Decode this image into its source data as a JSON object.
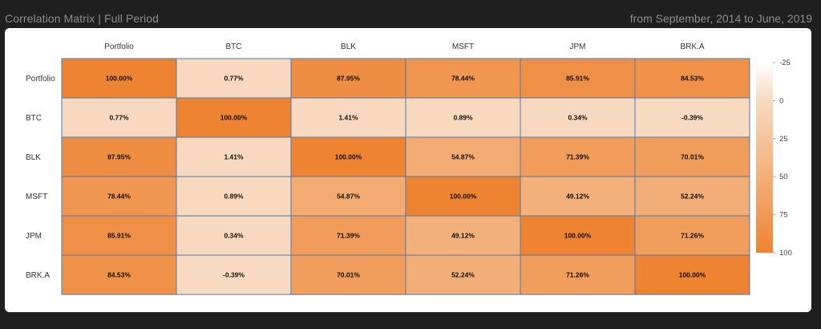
{
  "header": {
    "title": "Correlation Matrix | Full Period",
    "period": "from September, 2014 to June, 2019"
  },
  "colors": {
    "low": "#fbefe3",
    "high": "#ee8432",
    "grid": "#4a7ab0",
    "background": "#1f1f1f"
  },
  "chart_data": {
    "type": "heatmap",
    "columns": [
      "Portfolio",
      "BTC",
      "BLK",
      "MSFT",
      "JPM",
      "BRK.A"
    ],
    "rows": [
      "Portfolio",
      "BTC",
      "BLK",
      "MSFT",
      "JPM",
      "BRK.A"
    ],
    "values": [
      [
        100.0,
        0.77,
        87.95,
        78.44,
        85.91,
        84.53
      ],
      [
        0.77,
        100.0,
        1.41,
        0.89,
        0.34,
        -0.39
      ],
      [
        87.95,
        1.41,
        100.0,
        54.87,
        71.39,
        70.01
      ],
      [
        78.44,
        0.89,
        54.87,
        100.0,
        49.12,
        52.24
      ],
      [
        85.91,
        0.34,
        71.39,
        49.12,
        100.0,
        71.26
      ],
      [
        84.53,
        -0.39,
        70.01,
        52.24,
        71.26,
        100.0
      ]
    ],
    "labels": [
      [
        "100.00%",
        "0.77%",
        "87.95%",
        "78.44%",
        "85.91%",
        "84.53%"
      ],
      [
        "0.77%",
        "100.00%",
        "1.41%",
        "0.89%",
        "0.34%",
        "-0.39%"
      ],
      [
        "87.95%",
        "1.41%",
        "100.00%",
        "54.87%",
        "71.39%",
        "70.01%"
      ],
      [
        "78.44%",
        "0.89%",
        "54.87%",
        "100.00%",
        "49.12%",
        "52.24%"
      ],
      [
        "85.91%",
        "0.34%",
        "71.39%",
        "49.12%",
        "100.00%",
        "71.26%"
      ],
      [
        "84.53%",
        "-0.39%",
        "70.01%",
        "52.24%",
        "71.26%",
        "100.00%"
      ]
    ],
    "colorscale": {
      "range": [
        -25,
        100
      ],
      "ticks": [
        -25,
        0,
        25,
        50,
        75,
        100
      ],
      "tick_labels": [
        "-25",
        "0",
        "25",
        "50",
        "75",
        "100"
      ]
    }
  }
}
